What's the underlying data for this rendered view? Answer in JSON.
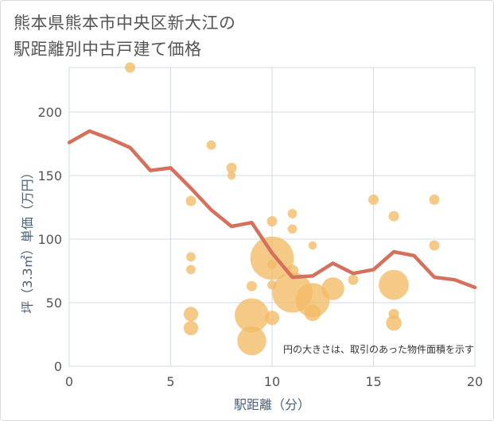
{
  "title_lines": [
    "熊本県熊本市中央区新大江の",
    "駅距離別中古戸建て価格"
  ],
  "chart_data": {
    "type": "scatter",
    "title": "熊本県熊本市中央区新大江の駅距離別中古戸建て価格",
    "xlabel": "駅距離（分）",
    "ylabel": "坪（3.3㎡）単価（万円）",
    "xlim": [
      0,
      20
    ],
    "ylim": [
      0,
      235
    ],
    "xticks": [
      0,
      5,
      10,
      15,
      20
    ],
    "yticks": [
      0,
      50,
      100,
      150,
      200
    ],
    "grid": true,
    "annotation": "円の大きさは、取引のあった物件面積を示す",
    "colors": {
      "line": "#d4705c",
      "bubble": "#f2bc68",
      "grid": "#cfdbe6"
    },
    "series": [
      {
        "name": "average",
        "kind": "line",
        "x": [
          0,
          1,
          2,
          3,
          4,
          5,
          6,
          7,
          8,
          9,
          10,
          11,
          12,
          13,
          14,
          15,
          16,
          17,
          18,
          19,
          20
        ],
        "values": [
          176,
          185,
          179,
          172,
          154,
          156,
          140,
          123,
          110,
          113,
          89,
          70,
          71,
          81,
          73,
          76,
          90,
          87,
          70,
          68,
          62
        ]
      },
      {
        "name": "transactions",
        "kind": "bubble",
        "points": [
          {
            "x": 3,
            "y": 235,
            "size": 1.0
          },
          {
            "x": 6,
            "y": 130,
            "size": 1.0
          },
          {
            "x": 6,
            "y": 86,
            "size": 0.9
          },
          {
            "x": 6,
            "y": 76,
            "size": 0.9
          },
          {
            "x": 6,
            "y": 41,
            "size": 1.4
          },
          {
            "x": 6,
            "y": 30,
            "size": 1.4
          },
          {
            "x": 7,
            "y": 174,
            "size": 0.9
          },
          {
            "x": 8,
            "y": 156,
            "size": 1.0
          },
          {
            "x": 8,
            "y": 150,
            "size": 0.8
          },
          {
            "x": 9,
            "y": 63,
            "size": 1.0
          },
          {
            "x": 9,
            "y": 40,
            "size": 3.3
          },
          {
            "x": 9,
            "y": 20,
            "size": 2.8
          },
          {
            "x": 10,
            "y": 114,
            "size": 1.0
          },
          {
            "x": 10,
            "y": 85,
            "size": 4.2
          },
          {
            "x": 10,
            "y": 80,
            "size": 0.9
          },
          {
            "x": 10,
            "y": 64,
            "size": 0.9
          },
          {
            "x": 10,
            "y": 38,
            "size": 1.4
          },
          {
            "x": 11,
            "y": 120,
            "size": 0.9
          },
          {
            "x": 11,
            "y": 108,
            "size": 0.9
          },
          {
            "x": 11,
            "y": 75,
            "size": 1.2
          },
          {
            "x": 11,
            "y": 58,
            "size": 3.9
          },
          {
            "x": 12,
            "y": 95,
            "size": 0.8
          },
          {
            "x": 12,
            "y": 52,
            "size": 3.3
          },
          {
            "x": 12,
            "y": 42,
            "size": 1.6
          },
          {
            "x": 13,
            "y": 61,
            "size": 2.2
          },
          {
            "x": 14,
            "y": 68,
            "size": 1.0
          },
          {
            "x": 15,
            "y": 131,
            "size": 1.0
          },
          {
            "x": 16,
            "y": 118,
            "size": 1.0
          },
          {
            "x": 16,
            "y": 64,
            "size": 2.9
          },
          {
            "x": 16,
            "y": 41,
            "size": 1.0
          },
          {
            "x": 16,
            "y": 34,
            "size": 1.5
          },
          {
            "x": 18,
            "y": 131,
            "size": 1.0
          },
          {
            "x": 18,
            "y": 95,
            "size": 1.0
          }
        ]
      }
    ]
  }
}
